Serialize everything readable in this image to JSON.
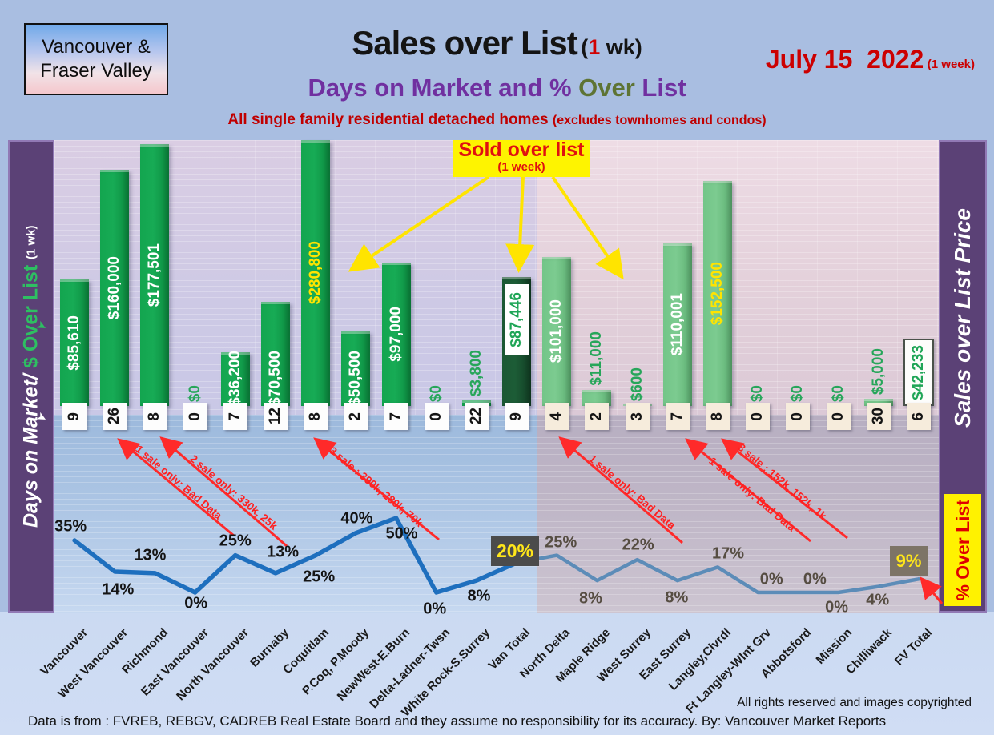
{
  "header": {
    "logo_line1": "Vancouver &",
    "logo_line2": "Fraser Valley",
    "title": "Sales over List",
    "title_paren_open": "(",
    "title_week_num": "1",
    "title_paren_close": " wk)",
    "subtitle_part1": "Days on Market and % ",
    "subtitle_part2": "Over",
    "subtitle_part3": " List",
    "tagline_main": "All single family residential detached homes ",
    "tagline_paren": "(excludes townhomes and condos)",
    "date": "July 15  2022",
    "date_paren": "(1 week)"
  },
  "left_axis": {
    "label_white": "Days on Market/",
    "label_green": "$ Over List",
    "label_small": "(1 wk)",
    "arrow_icon": "➤"
  },
  "right_axis": {
    "label": "Sales over List Price",
    "pct_box_label": "% Over List"
  },
  "callout": {
    "line1": "Sold over list",
    "line2": "(1 week)"
  },
  "annotations": [
    "1 sale only: Bad Data",
    "2 sale only: 330k, 25k",
    "3 sale : 390k, 280k, 70k",
    "1 sale only: Bad Data",
    "1 sale only: Bad Data",
    "3 sale : 152k, 152k, 1k"
  ],
  "highlights": {
    "van_total_pct": "20%",
    "fv_total_pct": "9%"
  },
  "footer": {
    "copyright": "All rights reserved and  images copyrighted",
    "disclaimer": "Data is from : FVREB, REBGV, CADREB Real Estate Board and they assume no responsibility for its accuracy. By: Vancouver Market Reports"
  },
  "chart_data": {
    "type": "combo: bar ($ over list price) + line (% over list) + data boxes (days on market)",
    "regions": {
      "vancouver_columns": 12,
      "fraser_valley_columns": 10
    },
    "categories": [
      "Vancouver",
      "West Vancouver",
      "Richmond",
      "East Vancouver",
      "North Vancouver",
      "Burnaby",
      "Coquitlam",
      "P.Coq, P.Moody",
      "NewWest-E.Burn",
      "Delta-Ladner-Twsn",
      "White Rock-S.Surrey",
      "Van Total",
      "North Delta",
      "Maple Ridge",
      "West Surrey",
      "East Surrey",
      "Langley,Clvrdl",
      "Ft Langley-WInt Grv",
      "Abbotsford",
      "Mission",
      "Chilliwack",
      "FV Total"
    ],
    "series": [
      {
        "name": "$ Over List",
        "values": [
          85610,
          160000,
          177501,
          0,
          36200,
          70500,
          280800,
          50500,
          97000,
          0,
          3800,
          87446,
          101000,
          11000,
          600,
          110001,
          152500,
          0,
          0,
          0,
          5000,
          42233
        ],
        "labels": [
          "$85,610",
          "$160,000",
          "$177,501",
          "$0",
          "$36,200",
          "$70,500",
          "$280,800",
          "$50,500",
          "$97,000",
          "$0",
          "$3,800",
          "$87,446",
          "$101,000",
          "$11,000",
          "$600",
          "$110,001",
          "$152,500",
          "$0",
          "$0",
          "$0",
          "$5,000",
          "$42,233"
        ]
      },
      {
        "name": "Days on Market",
        "values": [
          9,
          26,
          8,
          0,
          7,
          12,
          8,
          2,
          7,
          0,
          22,
          9,
          4,
          2,
          3,
          7,
          8,
          0,
          0,
          0,
          30,
          6
        ]
      },
      {
        "name": "% Over List",
        "values": [
          35,
          14,
          13,
          0,
          25,
          13,
          25,
          40,
          50,
          0,
          8,
          20,
          25,
          8,
          22,
          8,
          17,
          0,
          0,
          0,
          4,
          9
        ],
        "labels": [
          "35%",
          "14%",
          "13%",
          "0%",
          "25%",
          "13%",
          "25%",
          "40%",
          "50%",
          "0%",
          "8%",
          "20%",
          "25%",
          "8%",
          "22%",
          "8%",
          "17%",
          "0%",
          "0%",
          "0%",
          "4%",
          "9%"
        ]
      }
    ],
    "bar_axis": {
      "visible_max_dollars": 180000,
      "clipped_bars": [
        "Coquitlam"
      ]
    },
    "line_axis": {
      "min_pct": 0,
      "max_pct_shown": 50
    },
    "legend_position": "none",
    "grid": true
  }
}
